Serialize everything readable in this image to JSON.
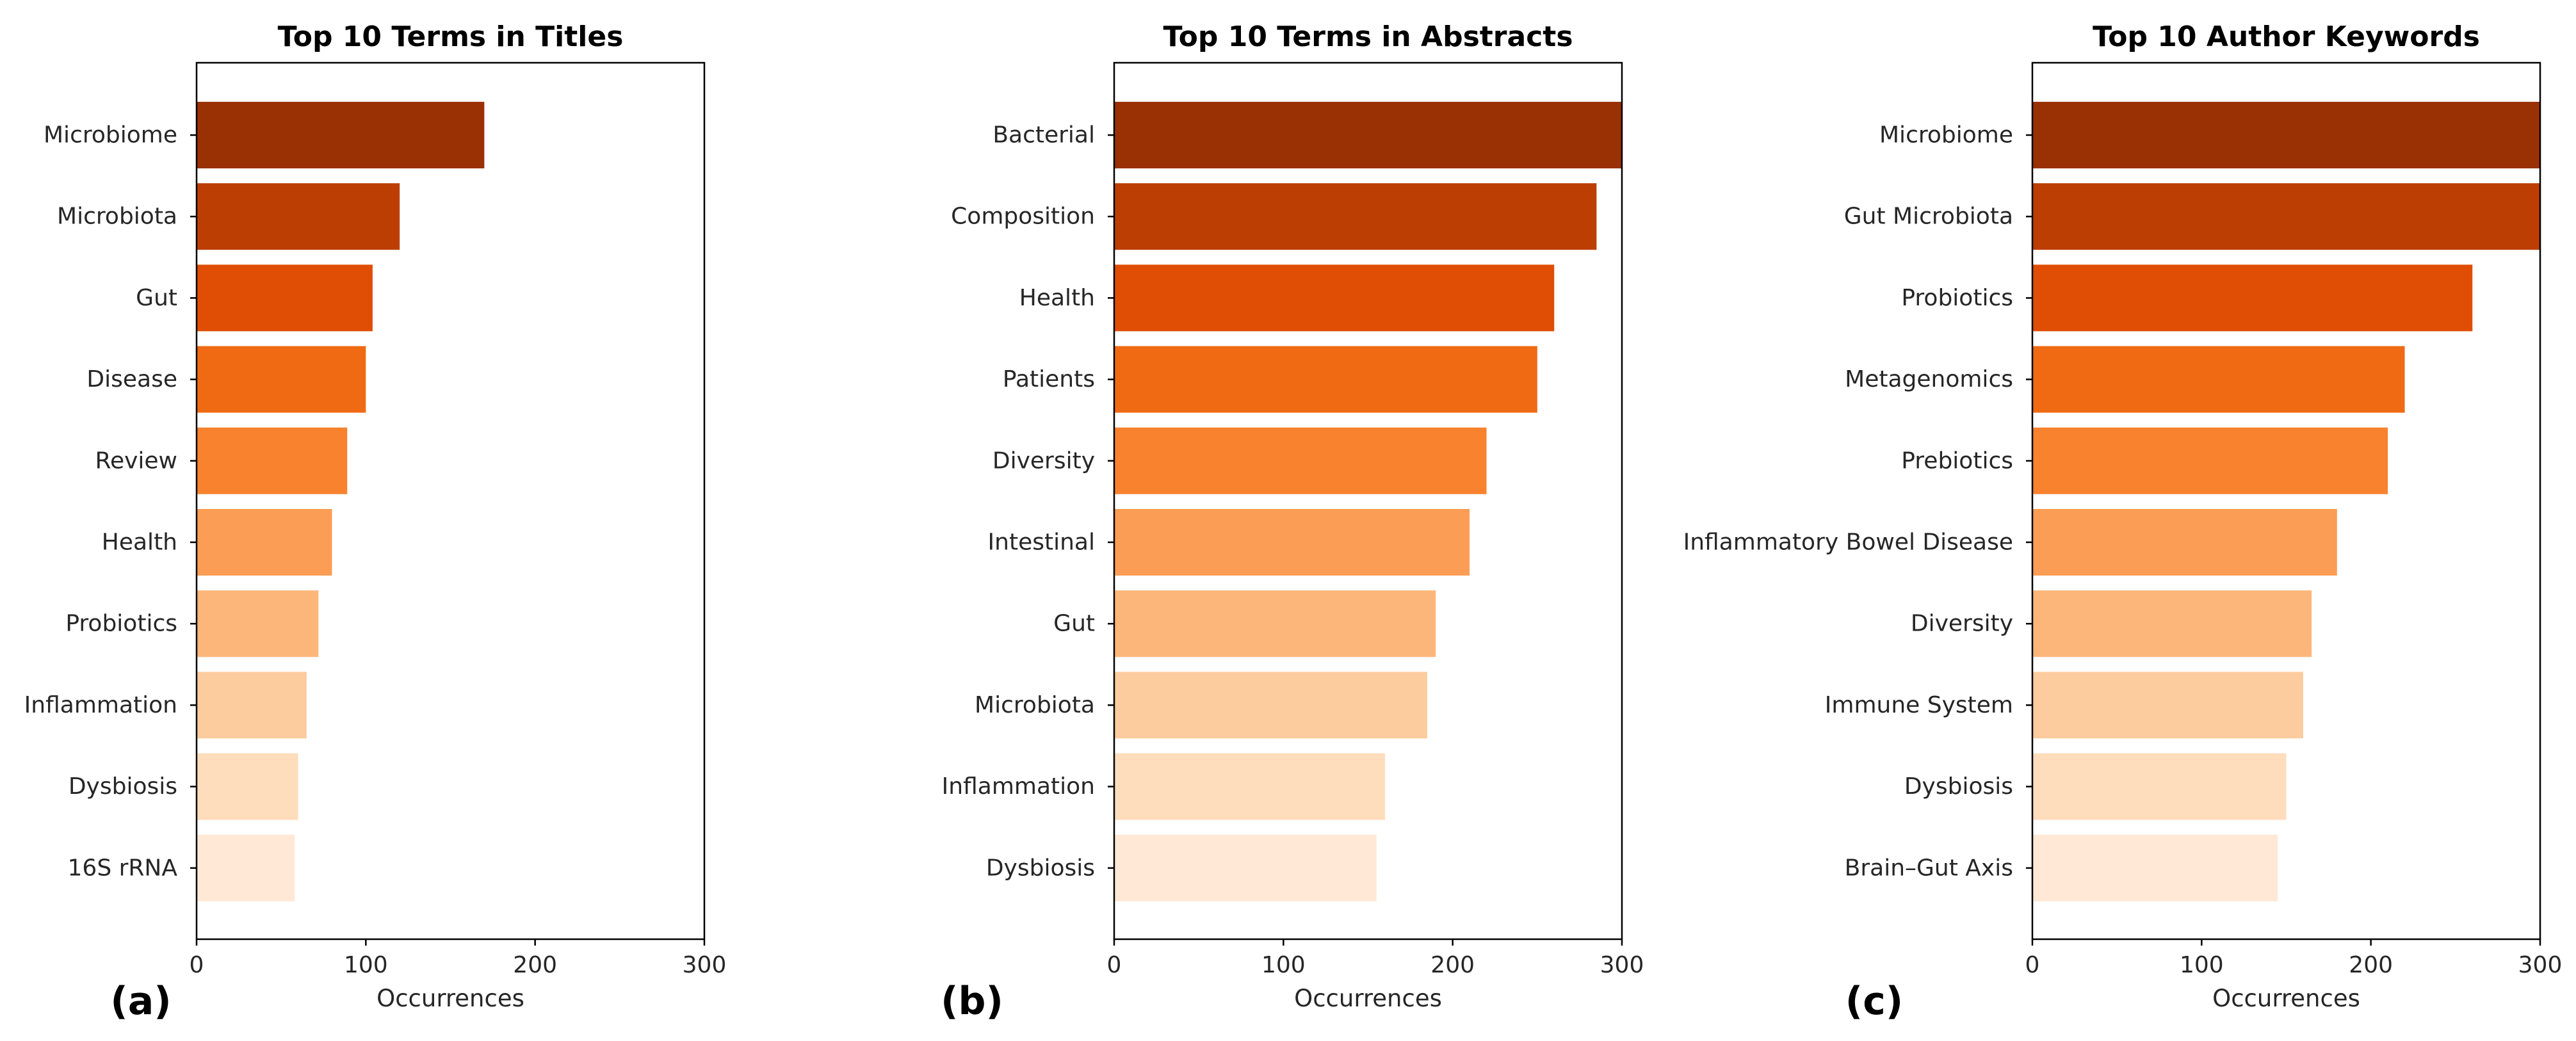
{
  "chart_data": [
    {
      "type": "bar",
      "orientation": "horizontal",
      "panel_label": "(a)",
      "title": "Top 10 Terms in Titles",
      "xlabel": "Occurrences",
      "ylabel": "",
      "xlim": [
        0,
        300
      ],
      "xticks": [
        "0",
        "100",
        "200",
        "300"
      ],
      "categories": [
        "Microbiome",
        "Microbiota",
        "Gut",
        "Disease",
        "Review",
        "Health",
        "Probiotics",
        "Inflammation",
        "Dysbiosis",
        "16S rRNA"
      ],
      "values": [
        170,
        120,
        104,
        100,
        89,
        80,
        72,
        65,
        60,
        58
      ],
      "colors": [
        "#9a3104",
        "#bd3e03",
        "#df4e04",
        "#f06a14",
        "#f8822e",
        "#fc9d55",
        "#fdb679",
        "#fdcc9e",
        "#feddbc",
        "#ffe9d6"
      ],
      "grid": false,
      "legend": "none"
    },
    {
      "type": "bar",
      "orientation": "horizontal",
      "panel_label": "(b)",
      "title": "Top 10 Terms in Abstracts",
      "xlabel": "Occurrences",
      "ylabel": "",
      "xlim": [
        0,
        300
      ],
      "xticks": [
        "0",
        "100",
        "200",
        "300"
      ],
      "categories": [
        "Bacterial",
        "Composition",
        "Health",
        "Patients",
        "Diversity",
        "Intestinal",
        "Gut",
        "Microbiota",
        "Inflammation",
        "Dysbiosis"
      ],
      "values": [
        300,
        285,
        260,
        250,
        220,
        210,
        190,
        185,
        160,
        155
      ],
      "colors": [
        "#9a3104",
        "#bd3e03",
        "#df4e04",
        "#f06a14",
        "#f8822e",
        "#fc9d55",
        "#fdb679",
        "#fdcc9e",
        "#feddbc",
        "#ffe9d6"
      ],
      "grid": false,
      "legend": "none"
    },
    {
      "type": "bar",
      "orientation": "horizontal",
      "panel_label": "(c)",
      "title": "Top 10 Author Keywords",
      "xlabel": "Occurrences",
      "ylabel": "",
      "xlim": [
        0,
        300
      ],
      "xticks": [
        "0",
        "100",
        "200",
        "300"
      ],
      "categories": [
        "Microbiome",
        "Gut Microbiota",
        "Probiotics",
        "Metagenomics",
        "Prebiotics",
        "Inflammatory Bowel Disease",
        "Diversity",
        "Immune System",
        "Dysbiosis",
        "Brain–Gut Axis"
      ],
      "values": [
        300,
        300,
        260,
        220,
        210,
        180,
        165,
        160,
        150,
        145
      ],
      "colors": [
        "#9a3104",
        "#bd3e03",
        "#df4e04",
        "#f06a14",
        "#f8822e",
        "#fc9d55",
        "#fdb679",
        "#fdcc9e",
        "#feddbc",
        "#ffe9d6"
      ],
      "grid": false,
      "legend": "none"
    }
  ]
}
